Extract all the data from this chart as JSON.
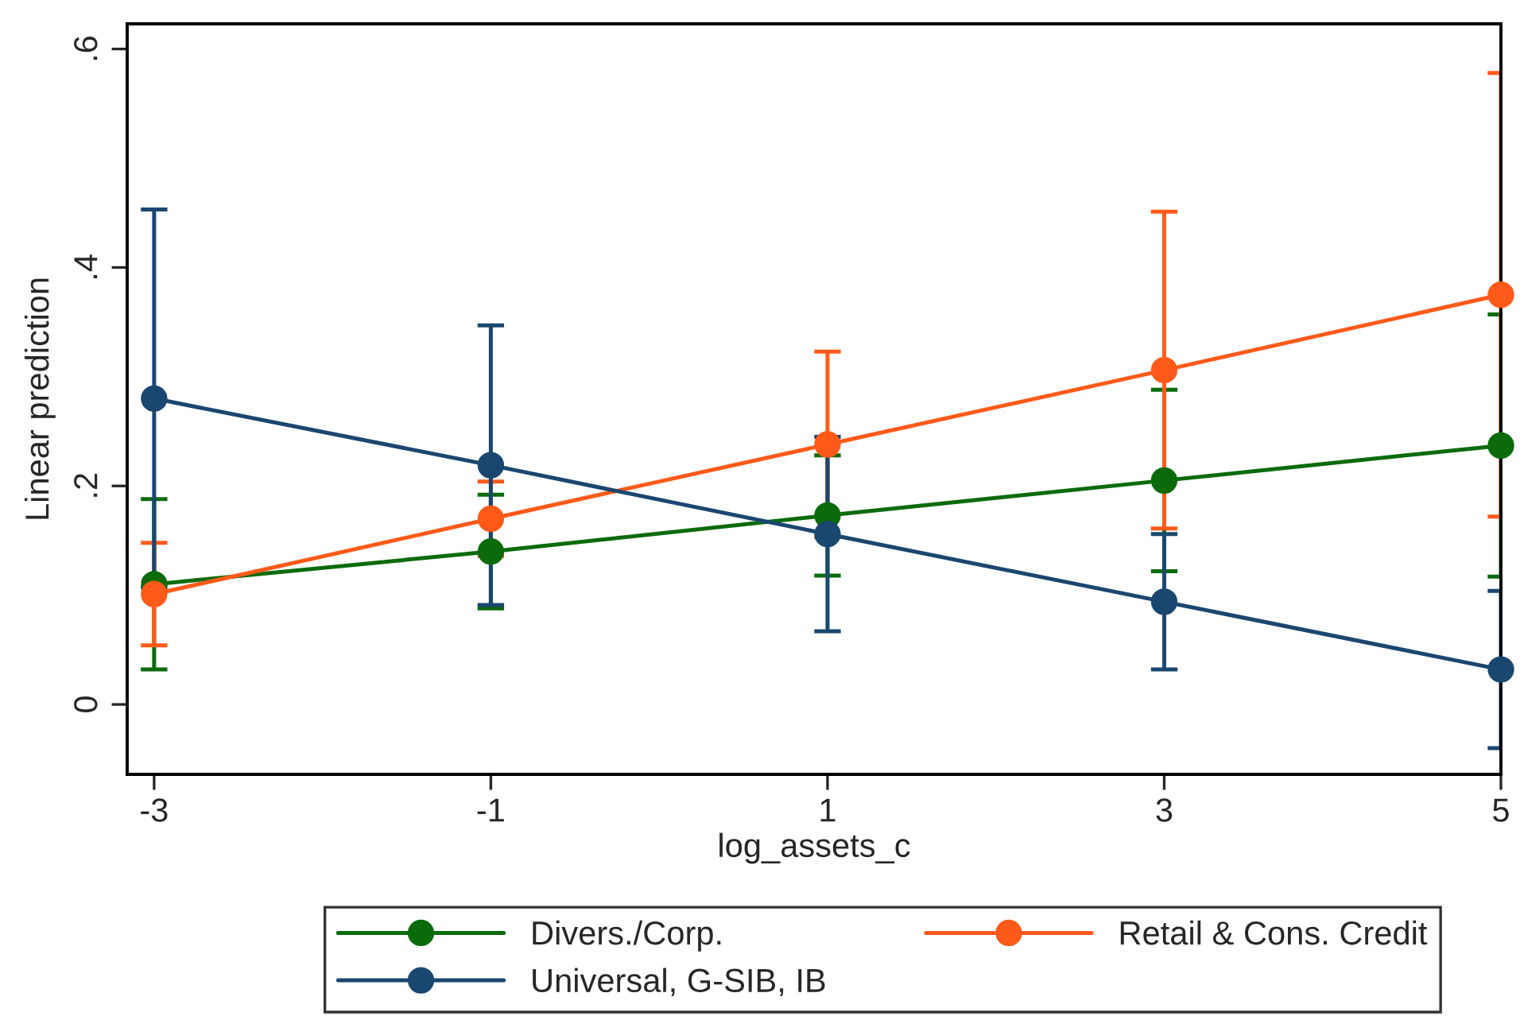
{
  "chart_data": {
    "type": "line",
    "xlabel": "log_assets_c",
    "ylabel": "Linear prediction",
    "x": [
      -3,
      -1,
      1,
      3,
      5
    ],
    "series": [
      {
        "name": "Divers./Corp.",
        "color": "#0b6b0b",
        "values": [
          0.11,
          0.14,
          0.173,
          0.205,
          0.237
        ],
        "errors": [
          0.078,
          0.052,
          0.055,
          0.083,
          0.12
        ]
      },
      {
        "name": "Retail & Cons. Credit",
        "color": "#ff5a1a",
        "values": [
          0.101,
          0.17,
          0.238,
          0.306,
          0.375
        ],
        "errors": [
          0.047,
          0.034,
          0.085,
          0.145,
          0.203
        ]
      },
      {
        "name": "Universal, G-SIB, IB",
        "color": "#1a476f",
        "values": [
          0.28,
          0.219,
          0.156,
          0.094,
          0.032
        ],
        "errors": [
          0.173,
          0.128,
          0.089,
          0.062,
          0.072
        ]
      }
    ],
    "xlim": [
      -3.16,
      5.0
    ],
    "ylim": [
      -0.064,
      0.623
    ],
    "xticks": [
      -3,
      -1,
      1,
      3,
      5
    ],
    "yticks": [
      {
        "value": 0,
        "label": "0"
      },
      {
        "value": 0.2,
        "label": ".2"
      },
      {
        "value": 0.4,
        "label": ".4"
      },
      {
        "value": 0.6,
        "label": ".6"
      }
    ],
    "marker": "circle",
    "line_style": "solid",
    "grid": false,
    "legend": "bottom"
  }
}
